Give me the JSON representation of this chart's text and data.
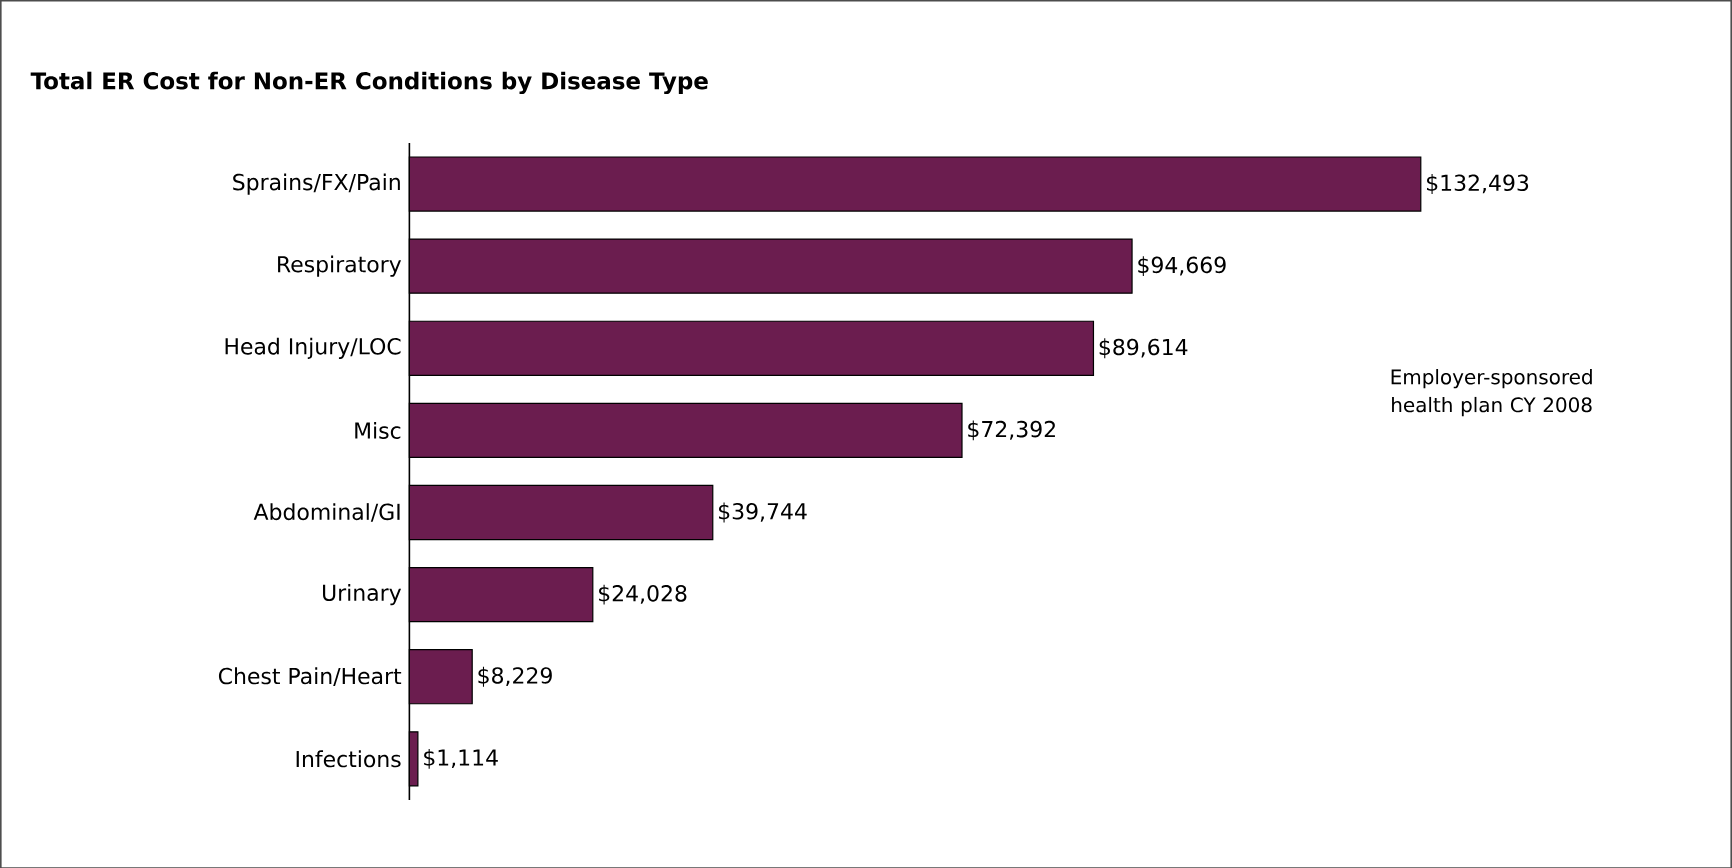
{
  "chart_data": {
    "type": "bar",
    "orientation": "horizontal",
    "title": "Total ER Cost for Non-ER Conditions by Disease Type",
    "categories": [
      "Sprains/FX/Pain",
      "Respiratory",
      "Head Injury/LOC",
      "Misc",
      "Abdominal/GI",
      "Urinary",
      "Chest Pain/Heart",
      "Infections"
    ],
    "values": [
      132493,
      94669,
      89614,
      72392,
      39744,
      24028,
      8229,
      1114
    ],
    "value_labels": [
      "$132,493",
      "$94,669",
      "$89,614",
      "$72,392",
      "$39,744",
      "$24,028",
      "$8,229",
      "$1,114"
    ],
    "color": "#6b1d4f",
    "annotations": [
      "Employer-sponsored health plan CY 2008"
    ]
  }
}
